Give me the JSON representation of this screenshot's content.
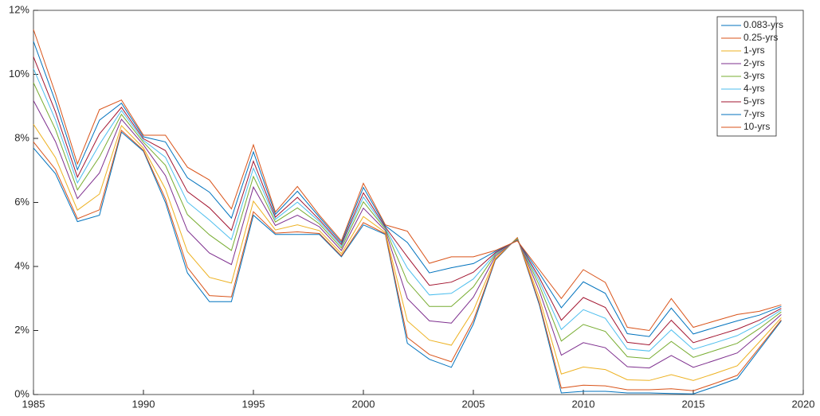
{
  "chart_data": {
    "type": "line",
    "x": [
      1985,
      1986,
      1987,
      1988,
      1989,
      1990,
      1991,
      1992,
      1993,
      1994,
      1995,
      1996,
      1997,
      1998,
      1999,
      2000,
      2001,
      2002,
      2003,
      2004,
      2005,
      2006,
      2007,
      2008,
      2009,
      2010,
      2011,
      2012,
      2013,
      2014,
      2015,
      2016,
      2017,
      2018,
      2019
    ],
    "series": [
      {
        "name": "0.083-yrs",
        "color": "#0072BD",
        "values": [
          7.7,
          6.9,
          5.4,
          5.6,
          8.2,
          7.6,
          6.0,
          3.8,
          2.9,
          2.9,
          5.6,
          5.0,
          5.0,
          5.0,
          4.3,
          5.3,
          5.0,
          1.6,
          1.1,
          0.85,
          2.2,
          4.2,
          4.9,
          2.8,
          0.05,
          0.1,
          0.1,
          0.05,
          0.05,
          0.03,
          0.02,
          0.25,
          0.5,
          1.4,
          2.3
        ]
      },
      {
        "name": "0.25-yrs",
        "color": "#D95319",
        "values": [
          7.89,
          7.03,
          5.49,
          5.77,
          8.25,
          7.63,
          6.11,
          3.97,
          3.09,
          3.05,
          5.71,
          5.04,
          5.08,
          5.03,
          4.33,
          5.37,
          5.02,
          1.78,
          1.25,
          1.02,
          2.31,
          4.22,
          4.9,
          2.86,
          0.2,
          0.29,
          0.27,
          0.15,
          0.15,
          0.18,
          0.12,
          0.35,
          0.6,
          1.46,
          2.33
        ]
      },
      {
        "name": "1-yrs",
        "color": "#EDB120",
        "values": [
          8.44,
          7.4,
          5.76,
          6.26,
          8.4,
          7.7,
          6.42,
          4.46,
          3.66,
          3.48,
          6.04,
          5.14,
          5.3,
          5.12,
          4.4,
          5.56,
          5.06,
          2.3,
          1.7,
          1.54,
          2.62,
          4.26,
          4.88,
          3.02,
          0.64,
          0.86,
          0.78,
          0.46,
          0.44,
          0.62,
          0.44,
          0.66,
          0.9,
          1.64,
          2.4
        ]
      },
      {
        "name": "2-yrs",
        "color": "#7E2F8E",
        "values": [
          9.18,
          7.9,
          6.12,
          6.92,
          8.6,
          7.8,
          6.84,
          5.12,
          4.42,
          4.06,
          6.48,
          5.28,
          5.6,
          5.24,
          4.5,
          5.82,
          5.12,
          3.0,
          2.3,
          2.23,
          3.04,
          4.32,
          4.86,
          3.24,
          1.23,
          1.62,
          1.46,
          0.87,
          0.83,
          1.22,
          0.85,
          1.07,
          1.3,
          1.88,
          2.5
        ]
      },
      {
        "name": "3-yrs",
        "color": "#77AC30",
        "values": [
          9.74,
          8.28,
          6.39,
          7.42,
          8.75,
          7.88,
          7.16,
          5.62,
          4.99,
          4.5,
          6.81,
          5.39,
          5.83,
          5.33,
          4.58,
          6.02,
          5.17,
          3.53,
          2.75,
          2.75,
          3.36,
          4.37,
          4.85,
          3.41,
          1.67,
          2.19,
          1.97,
          1.18,
          1.12,
          1.66,
          1.16,
          1.38,
          1.6,
          2.06,
          2.58
        ]
      },
      {
        "name": "4-yrs",
        "color": "#4DBEEE",
        "values": [
          10.18,
          8.58,
          6.61,
          7.81,
          8.87,
          7.94,
          7.41,
          6.01,
          5.45,
          4.84,
          7.07,
          5.47,
          6.01,
          5.4,
          4.64,
          6.17,
          5.2,
          3.95,
          3.11,
          3.16,
          3.61,
          4.4,
          4.83,
          3.54,
          2.03,
          2.65,
          2.38,
          1.42,
          1.36,
          2.02,
          1.41,
          1.62,
          1.84,
          2.2,
          2.64
        ]
      },
      {
        "name": "5-yrs",
        "color": "#A2142F",
        "values": [
          10.55,
          8.83,
          6.79,
          8.14,
          8.97,
          7.99,
          7.62,
          6.34,
          5.83,
          5.13,
          7.29,
          5.54,
          6.16,
          5.46,
          4.69,
          6.3,
          5.23,
          4.3,
          3.41,
          3.51,
          3.82,
          4.43,
          4.82,
          3.65,
          2.32,
          3.03,
          2.72,
          1.63,
          1.55,
          2.32,
          1.62,
          1.83,
          2.04,
          2.32,
          2.69
        ]
      },
      {
        "name": "7-yrs",
        "color": "#0072BD",
        "values": [
          11.03,
          9.15,
          7.02,
          8.57,
          9.1,
          8.05,
          7.89,
          6.77,
          6.32,
          5.51,
          7.58,
          5.63,
          6.35,
          5.54,
          4.75,
          6.47,
          5.27,
          4.75,
          3.8,
          3.96,
          4.09,
          4.47,
          4.81,
          3.79,
          2.71,
          3.52,
          3.16,
          1.9,
          1.81,
          2.7,
          1.89,
          2.1,
          2.3,
          2.48,
          2.75
        ]
      },
      {
        "name": "10-yrs",
        "color": "#D95319",
        "values": [
          11.4,
          9.4,
          7.2,
          8.9,
          9.2,
          8.1,
          8.1,
          7.1,
          6.7,
          5.8,
          7.8,
          5.7,
          6.5,
          5.6,
          4.8,
          6.6,
          5.3,
          5.1,
          4.1,
          4.3,
          4.3,
          4.5,
          4.8,
          3.9,
          3.0,
          3.9,
          3.5,
          2.1,
          2.0,
          3.0,
          2.1,
          2.3,
          2.5,
          2.6,
          2.8
        ]
      }
    ],
    "xlim": [
      1985,
      2020
    ],
    "xticks": [
      1985,
      1990,
      1995,
      2000,
      2005,
      2010,
      2015,
      2020
    ],
    "ylim": [
      0,
      12
    ],
    "yticks": [
      {
        "value": 0,
        "label": "0%"
      },
      {
        "value": 2,
        "label": "2%"
      },
      {
        "value": 4,
        "label": "4%"
      },
      {
        "value": 6,
        "label": "6%"
      },
      {
        "value": 8,
        "label": "8%"
      },
      {
        "value": 10,
        "label": "10%"
      },
      {
        "value": 12,
        "label": "12%"
      }
    ],
    "legend": "top-right",
    "grid": false
  }
}
